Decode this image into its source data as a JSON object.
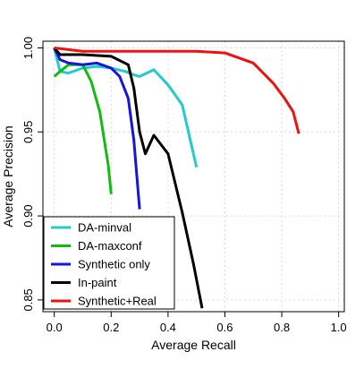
{
  "chart_data": {
    "type": "line",
    "title": "",
    "xlabel": "Average Recall",
    "ylabel": "Average Precision",
    "xlim": [
      -0.04,
      1.02
    ],
    "ylim": [
      0.843,
      1.004
    ],
    "xticks": [
      0.0,
      0.2,
      0.4,
      0.6,
      0.8,
      1.0
    ],
    "xtick_labels": [
      "0.0",
      "0.2",
      "0.4",
      "0.6",
      "0.8",
      "1.0"
    ],
    "yticks": [
      0.85,
      0.9,
      0.95,
      1.0
    ],
    "ytick_labels": [
      "0.85",
      "0.90",
      "0.95",
      "1.00"
    ],
    "grid": true,
    "legend_position": "bottom-left",
    "series": [
      {
        "name": "DA-minval",
        "color": "#22cccc",
        "points": [
          [
            0.0,
            1.0
          ],
          [
            0.02,
            0.986
          ],
          [
            0.05,
            0.985
          ],
          [
            0.1,
            0.988
          ],
          [
            0.15,
            0.989
          ],
          [
            0.2,
            0.988
          ],
          [
            0.25,
            0.986
          ],
          [
            0.28,
            0.984
          ],
          [
            0.3,
            0.983
          ],
          [
            0.35,
            0.987
          ],
          [
            0.4,
            0.978
          ],
          [
            0.45,
            0.966
          ],
          [
            0.5,
            0.929
          ]
        ]
      },
      {
        "name": "DA-maxconf",
        "color": "#11bb11",
        "points": [
          [
            0.0,
            0.983
          ],
          [
            0.02,
            0.986
          ],
          [
            0.05,
            0.99
          ],
          [
            0.1,
            0.99
          ],
          [
            0.13,
            0.98
          ],
          [
            0.16,
            0.962
          ],
          [
            0.19,
            0.93
          ],
          [
            0.2,
            0.913
          ]
        ]
      },
      {
        "name": "Synthetic only",
        "color": "#1515dd",
        "points": [
          [
            0.0,
            1.0
          ],
          [
            0.02,
            0.993
          ],
          [
            0.05,
            0.991
          ],
          [
            0.1,
            0.99
          ],
          [
            0.15,
            0.991
          ],
          [
            0.2,
            0.988
          ],
          [
            0.23,
            0.983
          ],
          [
            0.26,
            0.97
          ],
          [
            0.28,
            0.945
          ],
          [
            0.3,
            0.904
          ]
        ]
      },
      {
        "name": "In-paint",
        "color": "#000000",
        "points": [
          [
            0.0,
            1.0
          ],
          [
            0.02,
            0.996
          ],
          [
            0.1,
            0.996
          ],
          [
            0.2,
            0.995
          ],
          [
            0.26,
            0.99
          ],
          [
            0.28,
            0.976
          ],
          [
            0.3,
            0.95
          ],
          [
            0.32,
            0.937
          ],
          [
            0.35,
            0.948
          ],
          [
            0.4,
            0.937
          ],
          [
            0.45,
            0.902
          ],
          [
            0.49,
            0.871
          ],
          [
            0.52,
            0.845
          ]
        ]
      },
      {
        "name": "Synthetic+Real",
        "color": "#ee1111",
        "points": [
          [
            0.0,
            1.0
          ],
          [
            0.1,
            0.998
          ],
          [
            0.3,
            0.998
          ],
          [
            0.5,
            0.998
          ],
          [
            0.6,
            0.997
          ],
          [
            0.7,
            0.991
          ],
          [
            0.77,
            0.979
          ],
          [
            0.81,
            0.97
          ],
          [
            0.84,
            0.962
          ],
          [
            0.86,
            0.949
          ]
        ]
      }
    ]
  }
}
